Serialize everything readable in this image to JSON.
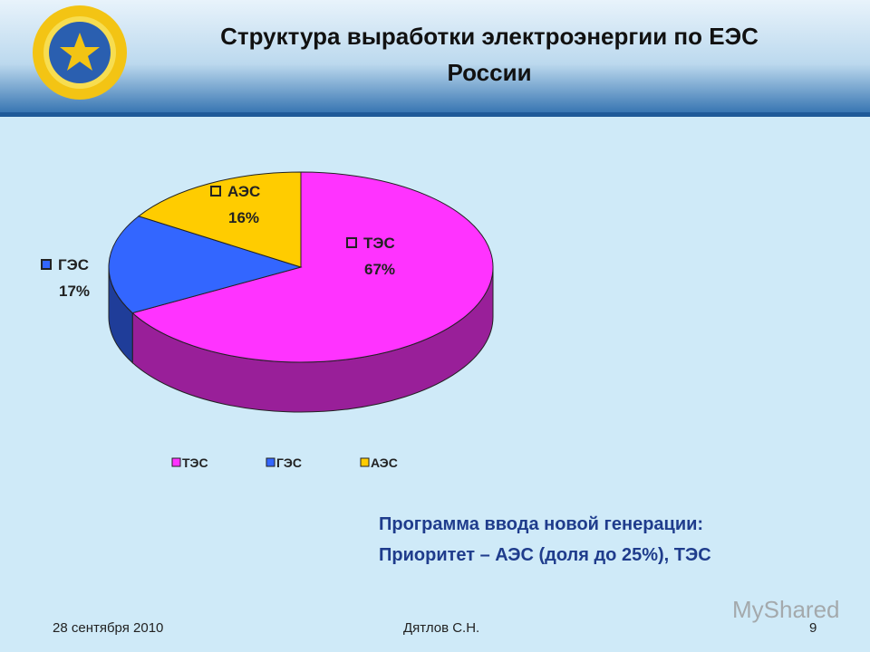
{
  "header": {
    "title": "Структура выработки электроэнергии по ЕЭС России"
  },
  "chart_data": {
    "type": "pie",
    "categories": [
      "ТЭС",
      "ГЭС",
      "АЭС"
    ],
    "values": [
      67,
      17,
      16
    ],
    "value_labels": [
      "67%",
      "17%",
      "16%"
    ],
    "colors": [
      "#ff33ff",
      "#3366ff",
      "#ffcc00"
    ],
    "legend": "bottom"
  },
  "notes": [
    "Программа ввода новой генерации:",
    "Приоритет – АЭС (доля до 25%), ТЭС"
  ],
  "footer": {
    "date": "28 сентября 2010",
    "author": "Дятлов С.Н.",
    "page": "9",
    "watermark": "MyShared"
  }
}
